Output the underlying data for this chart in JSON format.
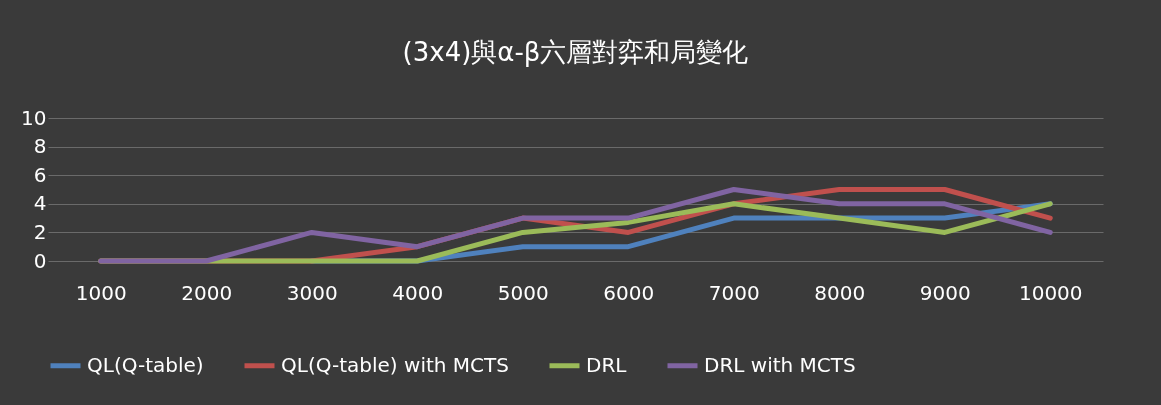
{
  "chart_data": {
    "type": "line",
    "title": "(3x4)與α-β六層對弈和局變化",
    "categories": [
      "1000",
      "2000",
      "3000",
      "4000",
      "5000",
      "6000",
      "7000",
      "8000",
      "9000",
      "10000"
    ],
    "series": [
      {
        "name": "QL(Q-table)",
        "color": "#4f81bd",
        "values": [
          null,
          null,
          0,
          0,
          1,
          1,
          3,
          3,
          3,
          4
        ]
      },
      {
        "name": "QL(Q-table) with MCTS",
        "color": "#c0504d",
        "values": [
          0,
          0,
          0,
          1,
          3,
          2,
          4,
          5,
          5,
          3
        ]
      },
      {
        "name": "DRL",
        "color": "#9bbb59",
        "values": [
          0,
          0,
          0,
          0,
          2,
          2.7,
          4,
          3,
          2,
          4
        ]
      },
      {
        "name": "DRL with MCTS",
        "color": "#8064a2",
        "values": [
          0,
          0,
          2,
          1,
          3,
          3,
          5,
          4,
          4,
          2
        ]
      }
    ],
    "ylim": [
      0,
      10
    ],
    "yticks": [
      0,
      2,
      4,
      6,
      8,
      10
    ],
    "grid": "y",
    "legend": "bottom",
    "marker": "none",
    "line_style": "solid"
  }
}
